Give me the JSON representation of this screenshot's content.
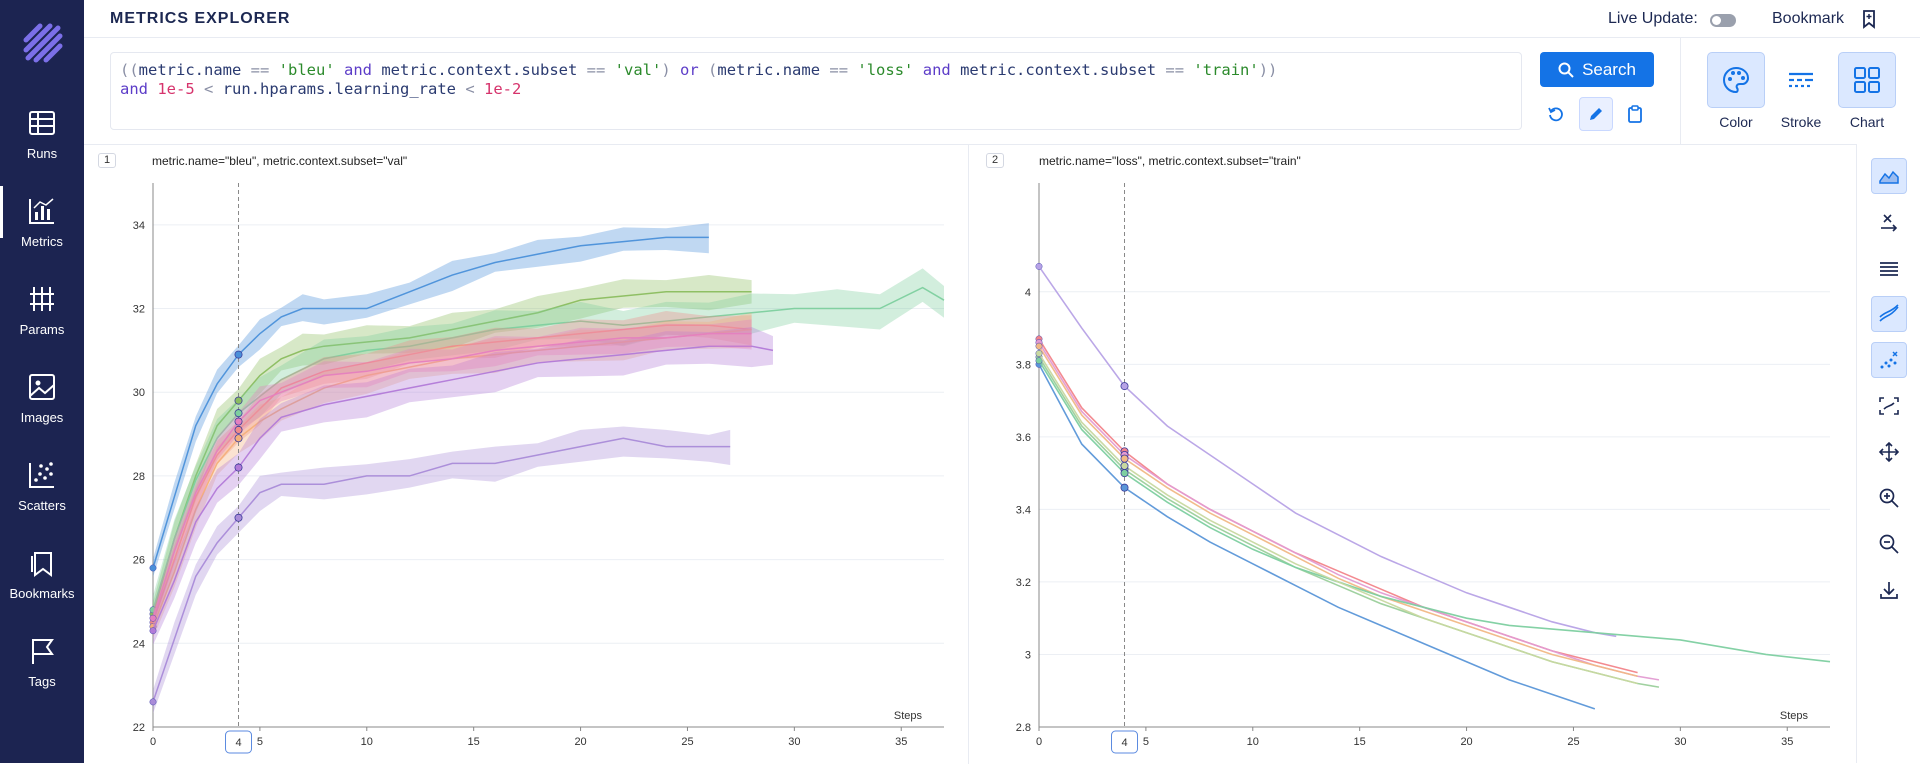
{
  "app": {
    "title": "METRICS EXPLORER"
  },
  "sidebar": {
    "items": [
      {
        "label": "Runs",
        "icon": "table-icon"
      },
      {
        "label": "Metrics",
        "icon": "bar-chart-icon",
        "active": true
      },
      {
        "label": "Params",
        "icon": "params-icon"
      },
      {
        "label": "Images",
        "icon": "image-icon"
      },
      {
        "label": "Scatters",
        "icon": "scatter-icon"
      },
      {
        "label": "Bookmarks",
        "icon": "bookmarks-icon"
      },
      {
        "label": "Tags",
        "icon": "flag-icon"
      }
    ]
  },
  "header": {
    "live_update": "Live Update:",
    "live_update_on": false,
    "bookmark": "Bookmark"
  },
  "query": {
    "line1": "((metric.name == 'bleu' and metric.context.subset == 'val') or (metric.name == 'loss' and metric.context.subset == 'train'))",
    "line2": "and 1e-5 < run.hparams.learning_rate < 1e-2"
  },
  "search": {
    "label": "Search"
  },
  "tools": [
    {
      "label": "Color"
    },
    {
      "label": "Stroke"
    },
    {
      "label": "Chart"
    }
  ],
  "colors": {
    "accent": "#1473e6",
    "sidebar": "#1c2451"
  },
  "charts": [
    {
      "index": "1",
      "title": "metric.name=\"bleu\", metric.context.subset=\"val\""
    },
    {
      "index": "2",
      "title": "metric.name=\"loss\", metric.context.subset=\"train\""
    }
  ],
  "chart_data": [
    {
      "type": "line",
      "title": "metric.name=\"bleu\", metric.context.subset=\"val\"",
      "xlabel": "Steps",
      "ylabel": "",
      "xlim": [
        0,
        37
      ],
      "ylim": [
        22,
        35
      ],
      "xticks": [
        0,
        5,
        10,
        15,
        20,
        25,
        30,
        35
      ],
      "yticks": [
        22,
        24,
        26,
        28,
        30,
        32,
        34
      ],
      "cursor_step": 4,
      "band": true,
      "series": [
        {
          "color": "#4a90d9",
          "x": [
            0,
            1,
            2,
            3,
            4,
            5,
            6,
            7,
            8,
            10,
            12,
            14,
            16,
            18,
            20,
            22,
            24,
            26
          ],
          "y": [
            25.8,
            27.5,
            29.2,
            30.2,
            30.9,
            31.4,
            31.8,
            32.0,
            32.0,
            32.0,
            32.4,
            32.8,
            33.1,
            33.3,
            33.5,
            33.6,
            33.7,
            33.7
          ]
        },
        {
          "color": "#8bbd5f",
          "x": [
            0,
            1,
            2,
            3,
            4,
            5,
            6,
            7,
            8,
            10,
            12,
            14,
            16,
            18,
            20,
            22,
            24,
            26,
            28
          ],
          "y": [
            24.7,
            26.5,
            28.0,
            29.2,
            29.8,
            30.4,
            30.8,
            31.0,
            31.1,
            31.2,
            31.3,
            31.5,
            31.7,
            31.9,
            32.2,
            32.3,
            32.4,
            32.4,
            32.4
          ]
        },
        {
          "color": "#7dcf9e",
          "x": [
            0,
            1,
            2,
            3,
            4,
            5,
            6,
            8,
            10,
            12,
            14,
            16,
            18,
            20,
            22,
            24,
            26,
            28,
            30,
            32,
            34,
            36,
            37
          ],
          "y": [
            24.8,
            26.5,
            27.9,
            28.9,
            29.5,
            29.9,
            30.3,
            30.8,
            31.0,
            31.1,
            31.3,
            31.5,
            31.6,
            31.7,
            31.6,
            31.7,
            31.8,
            31.9,
            32.0,
            32.0,
            32.0,
            32.5,
            32.2
          ]
        },
        {
          "color": "#f08a8a",
          "x": [
            0,
            1,
            2,
            3,
            4,
            5,
            6,
            8,
            10,
            12,
            14,
            16,
            18,
            20,
            22,
            24,
            26,
            28
          ],
          "y": [
            24.5,
            26.0,
            27.5,
            28.5,
            29.1,
            29.6,
            30.1,
            30.5,
            30.7,
            30.9,
            31.1,
            31.2,
            31.3,
            31.4,
            31.5,
            31.6,
            31.6,
            31.5
          ]
        },
        {
          "color": "#f4b07a",
          "x": [
            0,
            1,
            2,
            3,
            4,
            5,
            6,
            8,
            10,
            12,
            14,
            16,
            18,
            20,
            22,
            24,
            26,
            28
          ],
          "y": [
            24.4,
            25.7,
            27.2,
            28.3,
            28.9,
            29.3,
            29.6,
            30.1,
            30.4,
            30.6,
            30.8,
            30.9,
            31.0,
            31.1,
            31.2,
            31.3,
            31.4,
            31.5
          ]
        },
        {
          "color": "#b27ad8",
          "x": [
            0,
            1,
            2,
            3,
            4,
            5,
            6,
            8,
            10,
            12,
            14,
            16,
            18,
            20,
            22,
            24,
            26,
            28,
            29
          ],
          "y": [
            24.3,
            25.5,
            26.9,
            27.7,
            28.2,
            28.9,
            29.4,
            29.7,
            29.9,
            30.1,
            30.3,
            30.5,
            30.7,
            30.8,
            30.9,
            31.0,
            31.1,
            31.1,
            31.0
          ]
        },
        {
          "color": "#e57fbf",
          "x": [
            0,
            1,
            2,
            3,
            4,
            5,
            6,
            8,
            10,
            12,
            14,
            16,
            18,
            20,
            22,
            24,
            26,
            28
          ],
          "y": [
            24.6,
            26.2,
            27.6,
            28.6,
            29.3,
            29.8,
            30.0,
            30.4,
            30.5,
            30.7,
            30.8,
            31.0,
            31.1,
            31.2,
            31.3,
            31.3,
            31.4,
            31.4
          ]
        },
        {
          "color": "#a98bd8",
          "x": [
            0,
            1,
            2,
            3,
            4,
            5,
            6,
            8,
            10,
            12,
            14,
            16,
            18,
            20,
            22,
            24,
            26,
            27
          ],
          "y": [
            22.6,
            24.1,
            25.6,
            26.4,
            27.0,
            27.6,
            27.8,
            27.8,
            28.0,
            28.0,
            28.3,
            28.3,
            28.5,
            28.7,
            28.9,
            28.7,
            28.7,
            28.7
          ]
        }
      ]
    },
    {
      "type": "line",
      "title": "metric.name=\"loss\", metric.context.subset=\"train\"",
      "xlabel": "Steps",
      "ylabel": "",
      "xlim": [
        0,
        37
      ],
      "ylim": [
        2.8,
        4.3
      ],
      "xticks": [
        0,
        5,
        10,
        15,
        20,
        25,
        30,
        35
      ],
      "yticks": [
        2.8,
        3,
        3.2,
        3.4,
        3.6,
        3.8,
        4
      ],
      "ytick_labels": [
        "2.8",
        "3",
        "3.2",
        "3.4",
        "3.6",
        "3.8",
        "4"
      ],
      "cursor_step": 4,
      "band": false,
      "series": [
        {
          "color": "#5a96d8",
          "x": [
            0,
            2,
            4,
            6,
            8,
            10,
            12,
            14,
            16,
            18,
            20,
            22,
            24,
            26
          ],
          "y": [
            3.8,
            3.58,
            3.46,
            3.38,
            3.31,
            3.25,
            3.19,
            3.13,
            3.08,
            3.03,
            2.98,
            2.93,
            2.89,
            2.85
          ]
        },
        {
          "color": "#b7a2e6",
          "x": [
            0,
            2,
            4,
            6,
            8,
            10,
            12,
            14,
            16,
            18,
            20,
            22,
            24,
            26,
            27
          ],
          "y": [
            4.07,
            3.9,
            3.74,
            3.63,
            3.55,
            3.47,
            3.39,
            3.33,
            3.27,
            3.22,
            3.17,
            3.13,
            3.09,
            3.06,
            3.05
          ]
        },
        {
          "color": "#f2848a",
          "x": [
            0,
            2,
            4,
            6,
            8,
            10,
            12,
            14,
            16,
            18,
            20,
            22,
            24,
            26,
            28
          ],
          "y": [
            3.87,
            3.68,
            3.56,
            3.47,
            3.4,
            3.34,
            3.28,
            3.23,
            3.18,
            3.13,
            3.09,
            3.05,
            3.01,
            2.98,
            2.95
          ]
        },
        {
          "color": "#e39bd2",
          "x": [
            0,
            2,
            4,
            6,
            8,
            10,
            12,
            14,
            16,
            18,
            20,
            22,
            24,
            26,
            28,
            29
          ],
          "y": [
            3.86,
            3.67,
            3.55,
            3.47,
            3.4,
            3.34,
            3.28,
            3.22,
            3.17,
            3.13,
            3.09,
            3.05,
            3.01,
            2.97,
            2.94,
            2.93
          ]
        },
        {
          "color": "#f1b885",
          "x": [
            0,
            2,
            4,
            6,
            8,
            10,
            12,
            14,
            16,
            18,
            20,
            22,
            24,
            26,
            28
          ],
          "y": [
            3.85,
            3.66,
            3.54,
            3.46,
            3.39,
            3.33,
            3.27,
            3.21,
            3.16,
            3.12,
            3.08,
            3.04,
            3.0,
            2.97,
            2.94
          ]
        },
        {
          "color": "#9bcf9b",
          "x": [
            0,
            2,
            4,
            6,
            8,
            10,
            12,
            14,
            16,
            18,
            20,
            22,
            24,
            26,
            28,
            29
          ],
          "y": [
            3.82,
            3.63,
            3.51,
            3.43,
            3.36,
            3.3,
            3.24,
            3.19,
            3.14,
            3.1,
            3.06,
            3.02,
            2.98,
            2.95,
            2.92,
            2.91
          ]
        },
        {
          "color": "#7dcfa0",
          "x": [
            0,
            2,
            4,
            6,
            8,
            10,
            12,
            14,
            16,
            18,
            20,
            22,
            24,
            26,
            28,
            30,
            32,
            34,
            37
          ],
          "y": [
            3.81,
            3.62,
            3.5,
            3.42,
            3.35,
            3.29,
            3.24,
            3.2,
            3.16,
            3.13,
            3.1,
            3.08,
            3.07,
            3.06,
            3.05,
            3.04,
            3.02,
            3.0,
            2.98
          ]
        },
        {
          "color": "#c8d8a0",
          "x": [
            0,
            2,
            4,
            6,
            8,
            10,
            12,
            14,
            16,
            18,
            20,
            22,
            24,
            26,
            28
          ],
          "y": [
            3.83,
            3.64,
            3.52,
            3.44,
            3.37,
            3.31,
            3.25,
            3.2,
            3.15,
            3.1,
            3.06,
            3.02,
            2.98,
            2.95,
            2.92
          ]
        }
      ]
    }
  ]
}
